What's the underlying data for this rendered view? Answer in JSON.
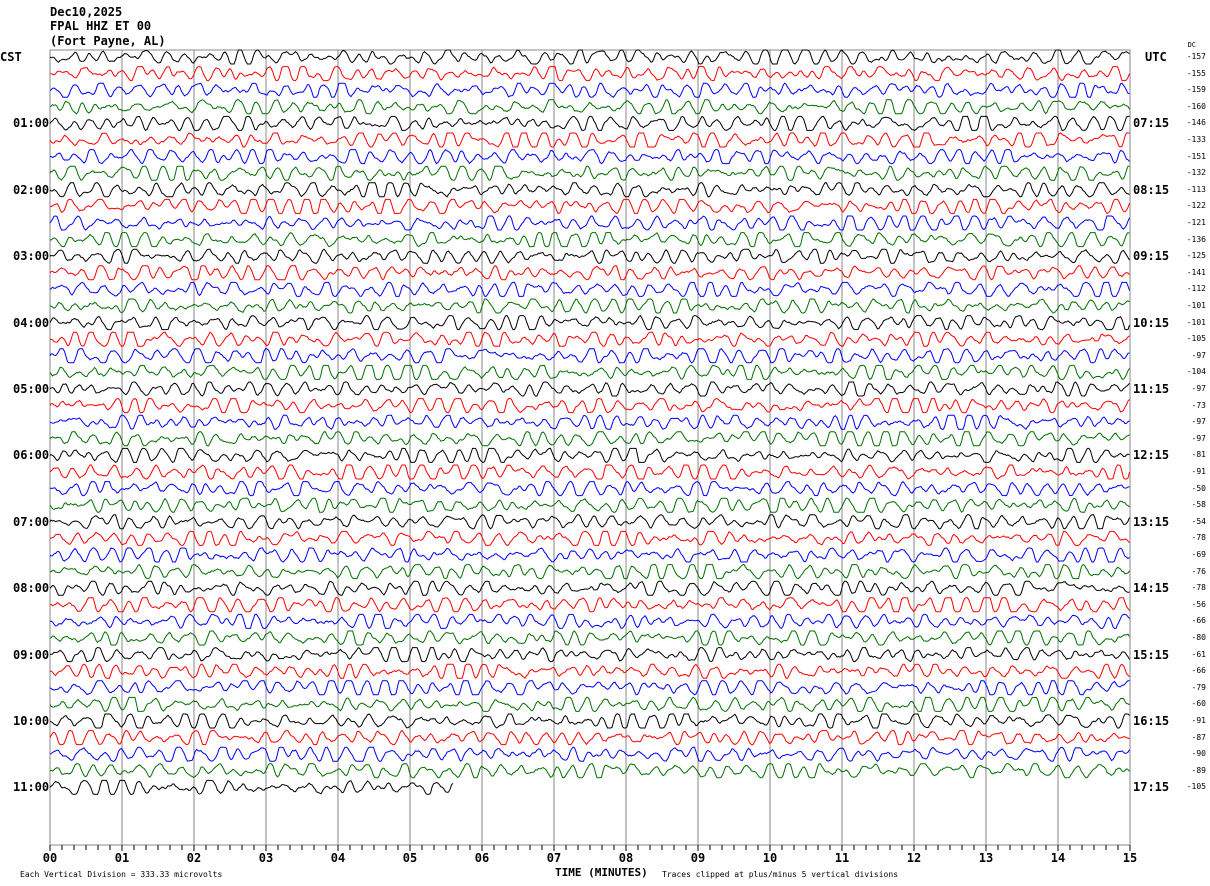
{
  "header": {
    "date": "Dec10,2025",
    "station": "FPAL HHZ ET 00",
    "location": "(Fort Payne, AL)"
  },
  "left_timezone": "CST",
  "right_timezone": "UTC",
  "dc_label": "DC",
  "footer": {
    "scale": "Each Vertical Division =  333.33 microvolts",
    "xlabel": "TIME (MINUTES)",
    "clip_note": "Traces clipped at plus/minus 5 vertical divisions"
  },
  "chart_data": {
    "type": "line",
    "xlabel": "TIME (MINUTES)",
    "xlim": [
      0,
      15
    ],
    "x_ticks": [
      "00",
      "01",
      "02",
      "03",
      "04",
      "05",
      "06",
      "07",
      "08",
      "09",
      "10",
      "11",
      "12",
      "13",
      "14",
      "15"
    ],
    "rows_per_hour": 4,
    "trace_colors": [
      "#000000",
      "#ff0000",
      "#0000ff",
      "#007000"
    ],
    "left_hour_labels": [
      "01:00",
      "02:00",
      "03:00",
      "04:00",
      "05:00",
      "06:00",
      "07:00",
      "08:00",
      "09:00",
      "10:00",
      "11:00"
    ],
    "right_hour_labels": [
      "07:15",
      "08:15",
      "09:15",
      "10:15",
      "11:15",
      "12:15",
      "13:15",
      "14:15",
      "15:15",
      "16:15",
      "17:15"
    ],
    "dc_offsets": [
      -157,
      -155,
      -159,
      -160,
      -146,
      -133,
      -151,
      -132,
      -113,
      -122,
      -121,
      -136,
      -125,
      -141,
      -112,
      -101,
      -101,
      -105,
      -97,
      -104,
      -97,
      -73,
      -97,
      -97,
      -81,
      -91,
      -50,
      -58,
      -54,
      -78,
      -69,
      -76,
      -78,
      -56,
      -66,
      -80,
      -61,
      -66,
      -79,
      -60,
      -91,
      -87,
      -90,
      -89,
      -105
    ],
    "last_trace_end_minute": 5.6
  }
}
